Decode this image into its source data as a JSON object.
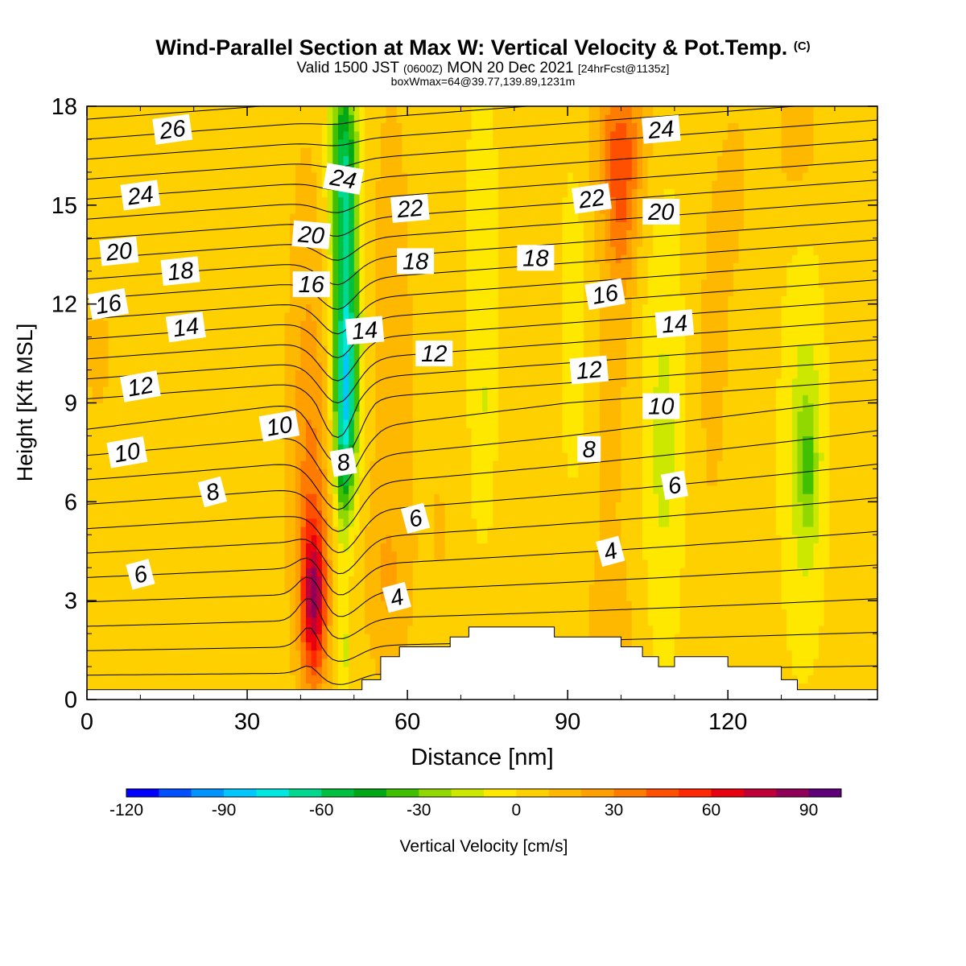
{
  "header": {
    "title": "Wind-Parallel Section at Max W: Vertical Velocity & Pot.Temp.",
    "copyright": "(C)",
    "valid_prefix": "Valid 1500 JST",
    "valid_zulu": "(0600Z)",
    "valid_date": "MON 20 Dec 2021",
    "forecast_info": "[24hrFcst@1135z]",
    "box_info": "boxWmax=64@39.77,139.89,1231m"
  },
  "chart_data": {
    "type": "heatmap",
    "title": "Wind-Parallel Section at Max W: Vertical Velocity & Pot.Temp.",
    "xlabel": "Distance [nm]",
    "ylabel": "Height [Kft MSL]",
    "xlim": [
      0,
      148
    ],
    "ylim": [
      0,
      18
    ],
    "x_ticks": [
      0,
      30,
      60,
      90,
      120
    ],
    "y_ticks": [
      0,
      3,
      6,
      9,
      12,
      15,
      18
    ],
    "colorbar": {
      "label": "Vertical Velocity [cm/s]",
      "min": -120,
      "max": 100,
      "step": 10,
      "tick_values": [
        -120,
        -90,
        -60,
        -30,
        0,
        30,
        60,
        90
      ],
      "colors": [
        "#0000ff",
        "#0050ff",
        "#0094ff",
        "#00c8ff",
        "#00e8e0",
        "#00d890",
        "#00c040",
        "#00a818",
        "#40c000",
        "#90d800",
        "#cce800",
        "#ffe800",
        "#ffd000",
        "#ffb800",
        "#ffa000",
        "#ff7c00",
        "#ff5000",
        "#ff2800",
        "#e80010",
        "#c00038",
        "#900058",
        "#600078"
      ]
    },
    "velocity_features": [
      {
        "x": 42.5,
        "y": 3.0,
        "sx": 1.6,
        "sy": 1.7,
        "w": 62
      },
      {
        "x": 42.0,
        "y": 6.0,
        "sx": 2.5,
        "sy": 4.0,
        "w": 22
      },
      {
        "x": 41.0,
        "y": 11.0,
        "sx": 3.0,
        "sy": 6.0,
        "w": 9
      },
      {
        "x": 48.5,
        "y": 9.0,
        "sx": 1.5,
        "sy": 2.2,
        "w": -52
      },
      {
        "x": 48.5,
        "y": 12.5,
        "sx": 1.8,
        "sy": 3.2,
        "w": -52
      },
      {
        "x": 48.0,
        "y": 16.5,
        "sx": 1.8,
        "sy": 2.0,
        "w": -42
      },
      {
        "x": 48.0,
        "y": 7.0,
        "sx": 1.0,
        "sy": 1.5,
        "w": -20
      },
      {
        "x": 48.0,
        "y": 1.5,
        "sx": 0.9,
        "sy": 1.5,
        "w": -18
      },
      {
        "x": 57.0,
        "y": 11.0,
        "sx": 3.0,
        "sy": 6.0,
        "w": 12
      },
      {
        "x": 56.0,
        "y": 3.5,
        "sx": 3.0,
        "sy": 2.0,
        "w": 12
      },
      {
        "x": 66.0,
        "y": 5.5,
        "sx": 3.0,
        "sy": 3.0,
        "w": 6
      },
      {
        "x": 74.0,
        "y": 14.0,
        "sx": 1.8,
        "sy": 4.0,
        "w": -14
      },
      {
        "x": 74.0,
        "y": 7.5,
        "sx": 1.6,
        "sy": 2.5,
        "w": -10
      },
      {
        "x": 78.0,
        "y": 3.0,
        "sx": 6.0,
        "sy": 1.5,
        "w": 5
      },
      {
        "x": 84.0,
        "y": 13.0,
        "sx": 3.0,
        "sy": 4.0,
        "w": 6
      },
      {
        "x": 91.0,
        "y": 11.5,
        "sx": 2.0,
        "sy": 3.5,
        "w": -12
      },
      {
        "x": 100.0,
        "y": 17.0,
        "sx": 3.5,
        "sy": 1.8,
        "w": 30
      },
      {
        "x": 100.0,
        "y": 14.5,
        "sx": 2.0,
        "sy": 2.0,
        "w": 22
      },
      {
        "x": 98.0,
        "y": 9.0,
        "sx": 3.0,
        "sy": 5.0,
        "w": 8
      },
      {
        "x": 98.0,
        "y": 2.0,
        "sx": 3.0,
        "sy": 1.5,
        "w": 12
      },
      {
        "x": 108.0,
        "y": 8.5,
        "sx": 3.0,
        "sy": 5.0,
        "w": -14
      },
      {
        "x": 108.0,
        "y": 7.5,
        "sx": 1.2,
        "sy": 1.5,
        "w": -10
      },
      {
        "x": 117.0,
        "y": 10.0,
        "sx": 3.0,
        "sy": 5.0,
        "w": 8
      },
      {
        "x": 122.0,
        "y": 16.0,
        "sx": 3.0,
        "sy": 3.0,
        "w": 6
      },
      {
        "x": 134.0,
        "y": 7.5,
        "sx": 3.0,
        "sy": 4.5,
        "w": -14
      },
      {
        "x": 135.0,
        "y": 7.3,
        "sx": 1.8,
        "sy": 2.0,
        "w": -18
      },
      {
        "x": 135.0,
        "y": 7.0,
        "sx": 0.8,
        "sy": 1.0,
        "w": -10
      },
      {
        "x": 133.0,
        "y": 17.0,
        "sx": 3.0,
        "sy": 1.5,
        "w": 12
      },
      {
        "x": 2.0,
        "y": 10.5,
        "sx": 2.0,
        "sy": 1.5,
        "w": 10
      },
      {
        "x": 16.0,
        "y": 14.0,
        "sx": 4.0,
        "sy": 2.0,
        "w": 6
      }
    ],
    "theta_contours": {
      "min_level": 1,
      "max_level": 30,
      "step": 1,
      "label_color": "#000000"
    },
    "contour_labels": [
      {
        "text": "26",
        "x": 16.0,
        "y": 17.3,
        "rot": -8
      },
      {
        "text": "24",
        "x": 10.0,
        "y": 15.3,
        "rot": -8
      },
      {
        "text": "20",
        "x": 6.0,
        "y": 13.6,
        "rot": -6
      },
      {
        "text": "18",
        "x": 17.5,
        "y": 13.0,
        "rot": -6
      },
      {
        "text": "16",
        "x": 4.0,
        "y": 12.0,
        "rot": -10
      },
      {
        "text": "14",
        "x": 18.5,
        "y": 11.3,
        "rot": -8
      },
      {
        "text": "12",
        "x": 10.0,
        "y": 9.5,
        "rot": -10
      },
      {
        "text": "10",
        "x": 7.5,
        "y": 7.5,
        "rot": -10
      },
      {
        "text": "10",
        "x": 36.0,
        "y": 8.3,
        "rot": -10
      },
      {
        "text": "8",
        "x": 23.5,
        "y": 6.3,
        "rot": -15
      },
      {
        "text": "6",
        "x": 10.0,
        "y": 3.8,
        "rot": -15
      },
      {
        "text": "24",
        "x": 48.0,
        "y": 15.8,
        "rot": 10
      },
      {
        "text": "20",
        "x": 42.0,
        "y": 14.1,
        "rot": 5
      },
      {
        "text": "16",
        "x": 42.0,
        "y": 12.6,
        "rot": 0
      },
      {
        "text": "14",
        "x": 52.0,
        "y": 11.2,
        "rot": -5
      },
      {
        "text": "8",
        "x": 48.0,
        "y": 7.2,
        "rot": -10
      },
      {
        "text": "22",
        "x": 60.5,
        "y": 14.9,
        "rot": -5
      },
      {
        "text": "18",
        "x": 61.5,
        "y": 13.3,
        "rot": 0
      },
      {
        "text": "12",
        "x": 65.0,
        "y": 10.5,
        "rot": 0
      },
      {
        "text": "6",
        "x": 61.5,
        "y": 5.5,
        "rot": -15
      },
      {
        "text": "4",
        "x": 58.0,
        "y": 3.1,
        "rot": -15
      },
      {
        "text": "18",
        "x": 84.0,
        "y": 13.4,
        "rot": 0
      },
      {
        "text": "22",
        "x": 94.5,
        "y": 15.2,
        "rot": -8
      },
      {
        "text": "24",
        "x": 107.5,
        "y": 17.3,
        "rot": -5
      },
      {
        "text": "20",
        "x": 107.5,
        "y": 14.8,
        "rot": 0
      },
      {
        "text": "16",
        "x": 97.0,
        "y": 12.3,
        "rot": -10
      },
      {
        "text": "14",
        "x": 110.0,
        "y": 11.4,
        "rot": -5
      },
      {
        "text": "12",
        "x": 94.0,
        "y": 10.0,
        "rot": -5
      },
      {
        "text": "10",
        "x": 107.5,
        "y": 8.9,
        "rot": 0
      },
      {
        "text": "8",
        "x": 94.0,
        "y": 7.6,
        "rot": 0
      },
      {
        "text": "6",
        "x": 110.0,
        "y": 6.5,
        "rot": -10
      },
      {
        "text": "4",
        "x": 98.0,
        "y": 4.5,
        "rot": -15
      }
    ],
    "terrain": [
      [
        0,
        0.3
      ],
      [
        51.5,
        0.3
      ],
      [
        51.5,
        0.6
      ],
      [
        55,
        0.6
      ],
      [
        55,
        1.3
      ],
      [
        58.5,
        1.3
      ],
      [
        58.5,
        1.6
      ],
      [
        68,
        1.6
      ],
      [
        68,
        1.9
      ],
      [
        71.5,
        1.9
      ],
      [
        71.5,
        2.2
      ],
      [
        87.5,
        2.2
      ],
      [
        87.5,
        1.9
      ],
      [
        100,
        1.9
      ],
      [
        100,
        1.6
      ],
      [
        104,
        1.6
      ],
      [
        104,
        1.3
      ],
      [
        107,
        1.3
      ],
      [
        107,
        1.0
      ],
      [
        110,
        1.0
      ],
      [
        110,
        1.3
      ],
      [
        120,
        1.3
      ],
      [
        120,
        1.0
      ],
      [
        130,
        1.0
      ],
      [
        130,
        0.6
      ],
      [
        133,
        0.6
      ],
      [
        133,
        0.3
      ],
      [
        148,
        0.3
      ]
    ]
  }
}
